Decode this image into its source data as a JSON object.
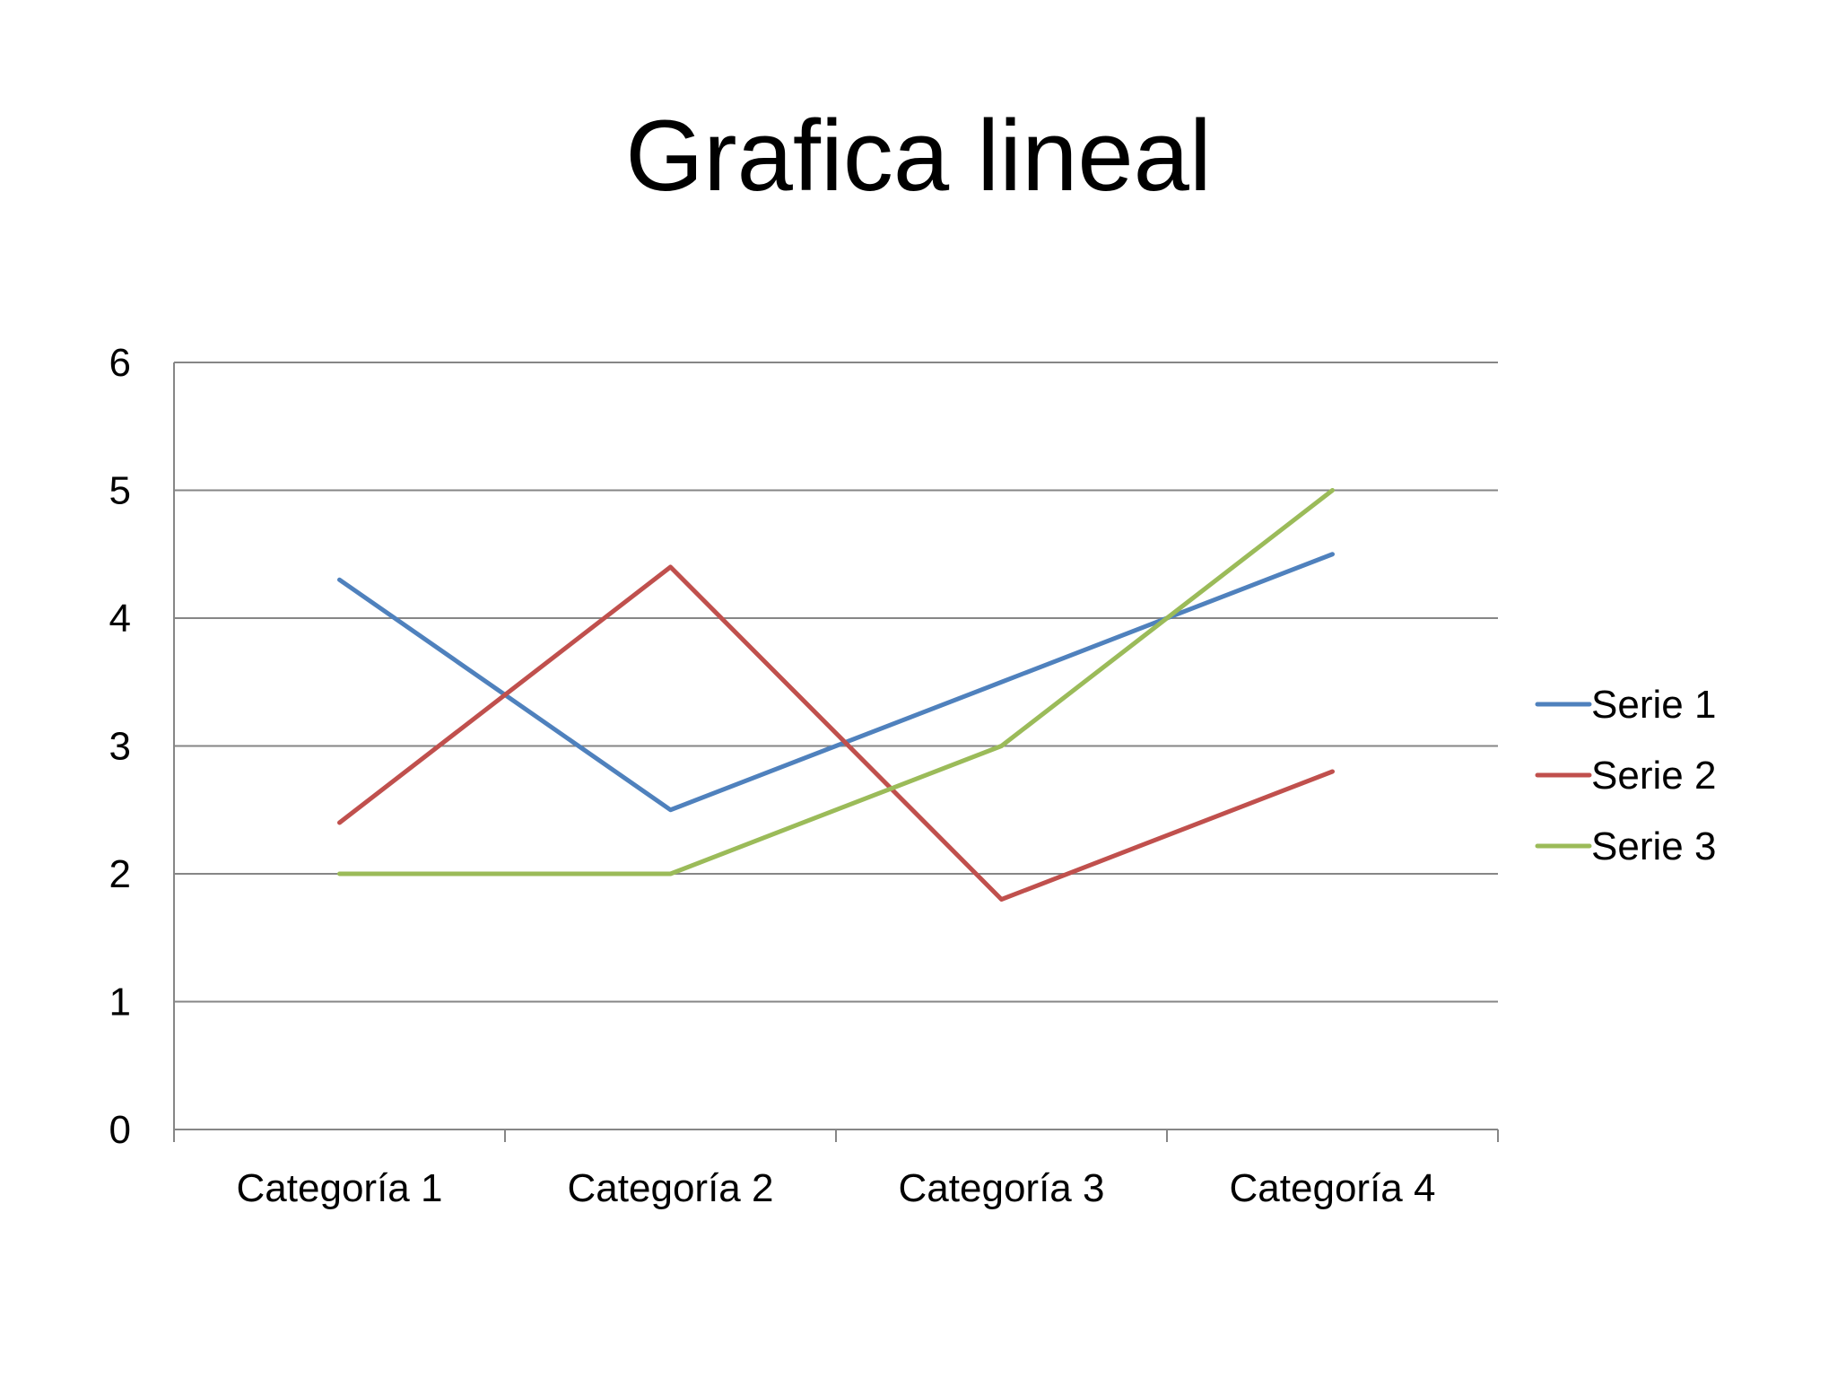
{
  "chart_data": {
    "type": "line",
    "title": "Grafica lineal",
    "xlabel": "",
    "ylabel": "",
    "categories": [
      "Categoría 1",
      "Categoría 2",
      "Categoría 3",
      "Categoría 4"
    ],
    "ylim": [
      0,
      6
    ],
    "yticks": [
      "0",
      "1",
      "2",
      "3",
      "4",
      "5",
      "6"
    ],
    "grid": true,
    "legend_position": "right",
    "series": [
      {
        "name": "Serie 1",
        "color": "#4f81bd",
        "values": [
          4.3,
          2.5,
          3.5,
          4.5
        ]
      },
      {
        "name": "Serie 2",
        "color": "#c0504d",
        "values": [
          2.4,
          4.4,
          1.8,
          2.8
        ]
      },
      {
        "name": "Serie 3",
        "color": "#9bbb59",
        "values": [
          2,
          2,
          3,
          5
        ]
      }
    ]
  }
}
